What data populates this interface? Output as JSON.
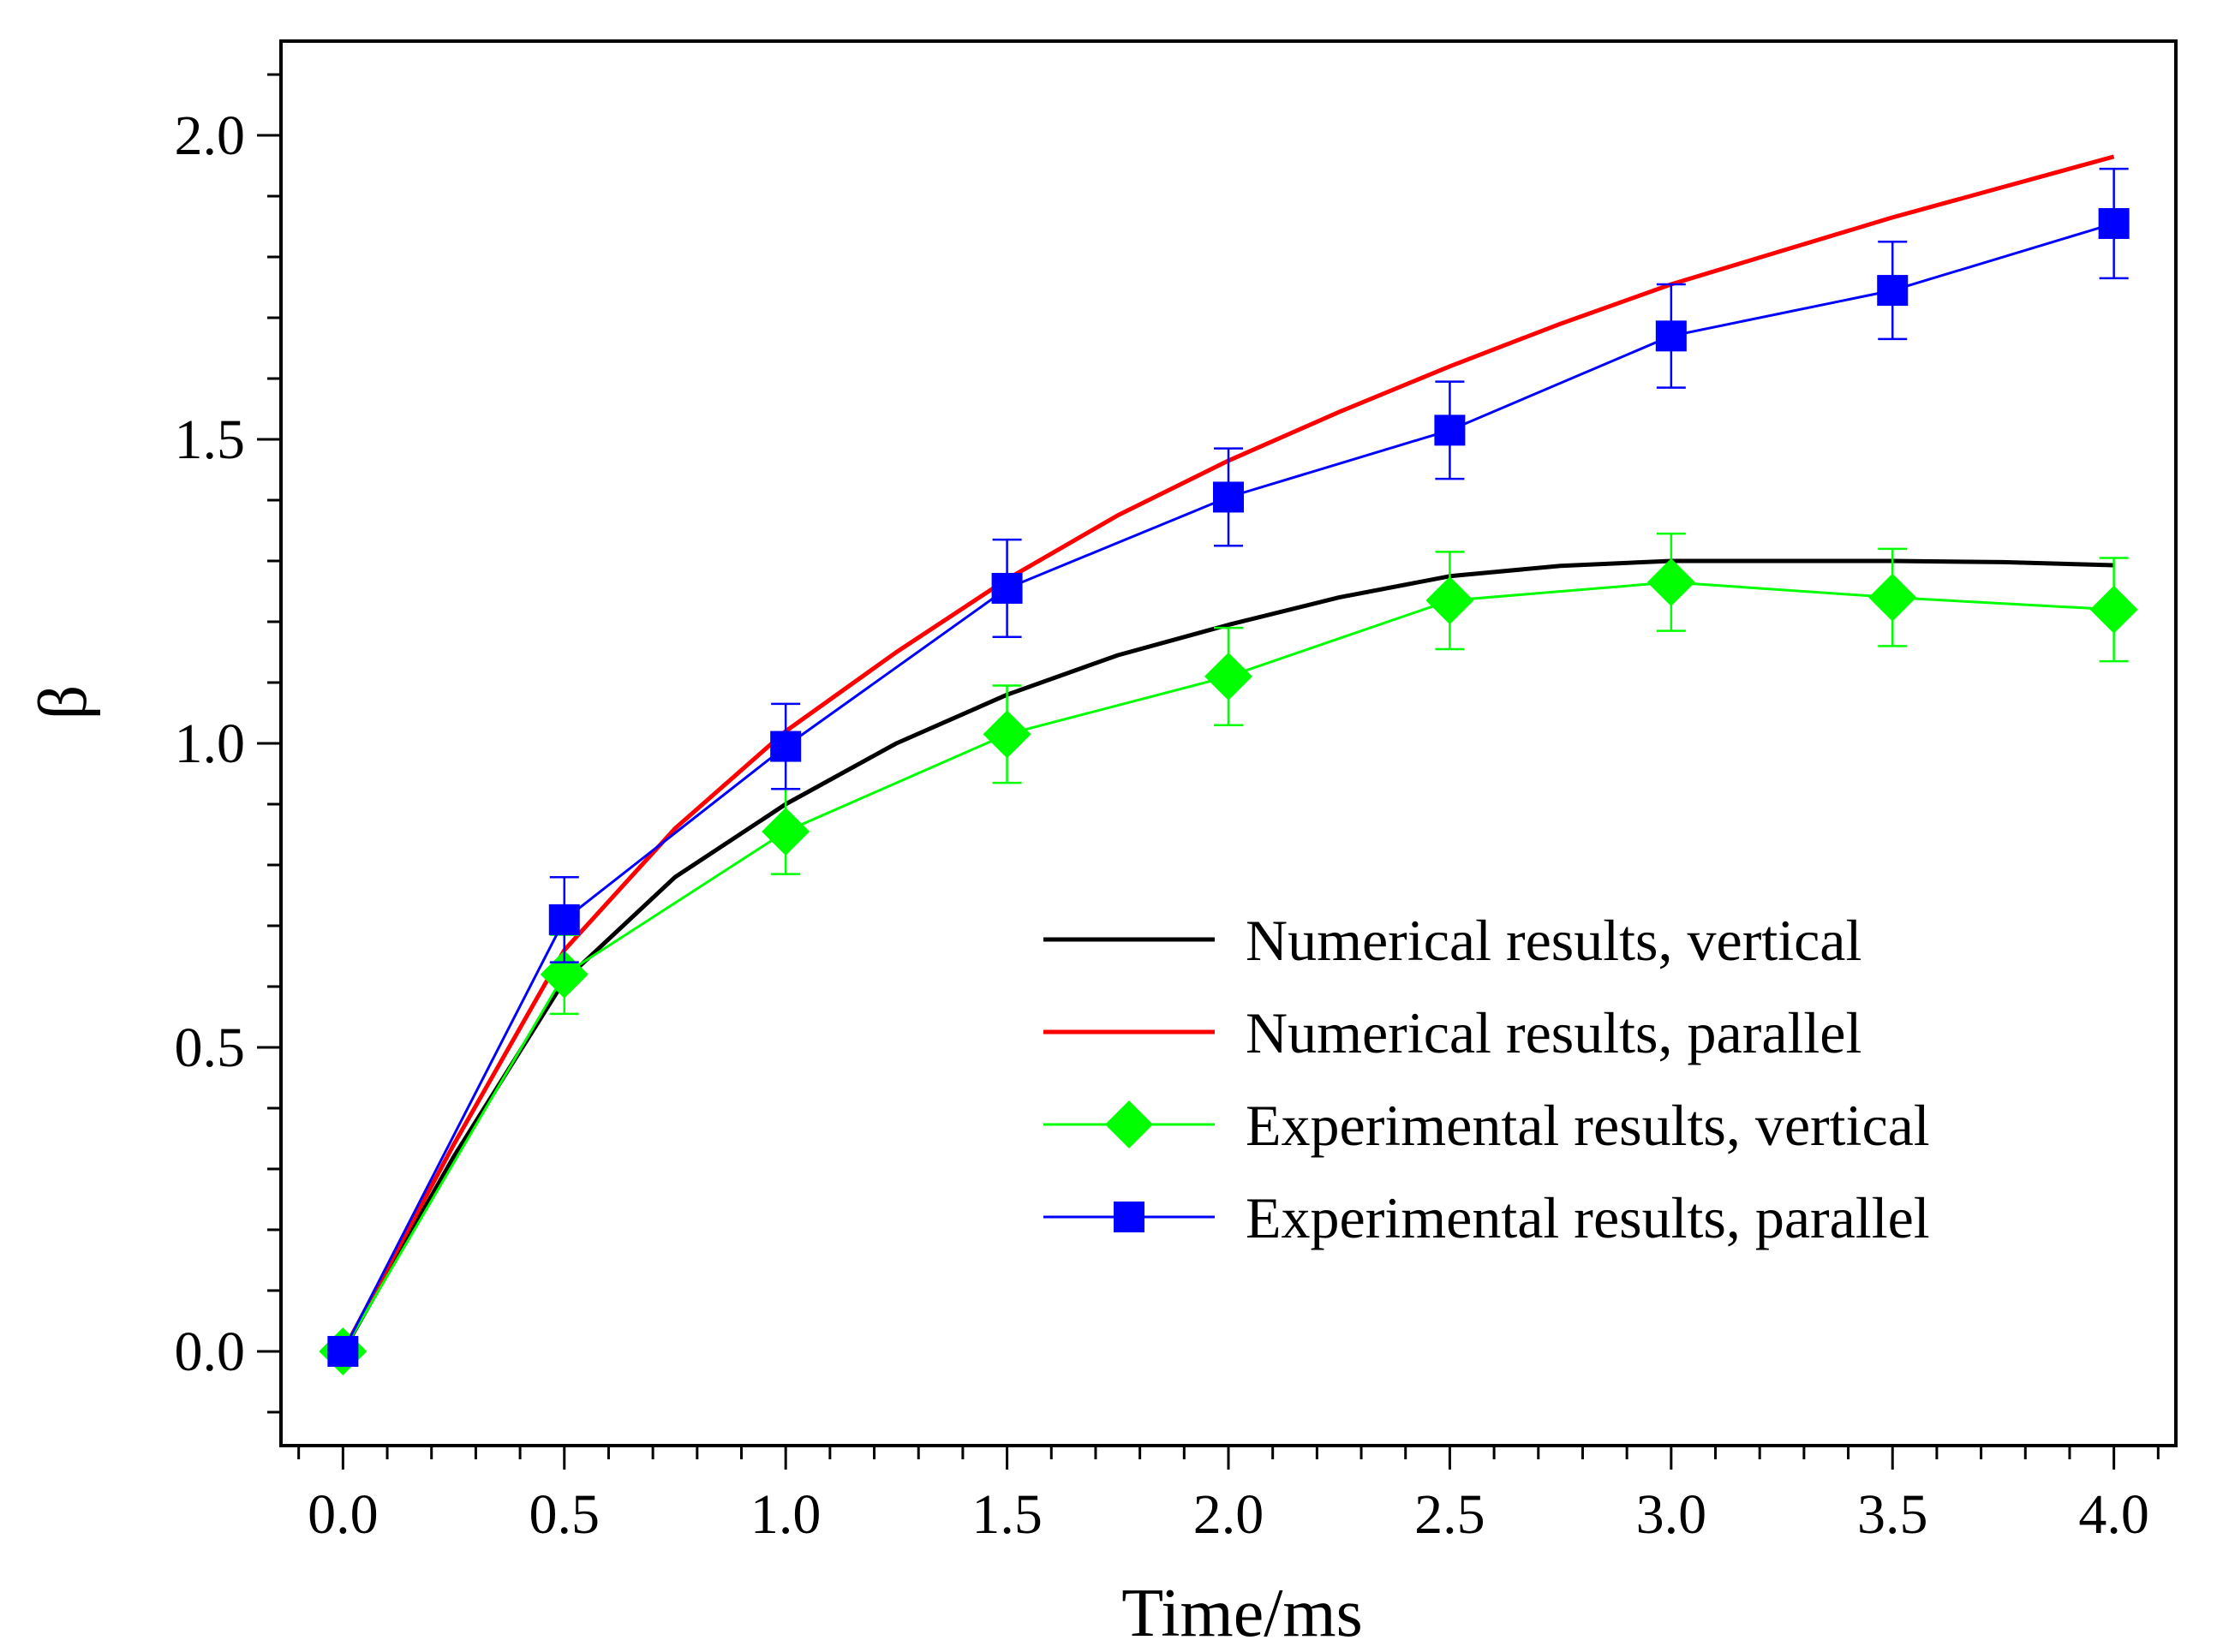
{
  "chart_data": {
    "type": "line",
    "title": "",
    "xlabel": "Time/ms",
    "ylabel": "β",
    "xlim": [
      -0.14,
      4.14
    ],
    "ylim": [
      -0.155,
      2.155
    ],
    "x_ticks": [
      0.0,
      0.5,
      1.0,
      1.5,
      2.0,
      2.5,
      3.0,
      3.5,
      4.0
    ],
    "x_tick_labels": [
      "0.0",
      "0.5",
      "1.0",
      "1.5",
      "2.0",
      "2.5",
      "3.0",
      "3.5",
      "4.0"
    ],
    "x_minor_step": 0.1,
    "y_ticks": [
      0.0,
      0.5,
      1.0,
      1.5,
      2.0
    ],
    "y_tick_labels": [
      "0.0",
      "0.5",
      "1.0",
      "1.5",
      "2.0"
    ],
    "y_minor_step": 0.1,
    "grid": false,
    "legend_position": "lower-right",
    "series": [
      {
        "name": "Numerical results, vertical",
        "color": "#000000",
        "marker": "none",
        "x": [
          0.0,
          0.25,
          0.5,
          0.75,
          1.0,
          1.25,
          1.5,
          1.75,
          2.0,
          2.25,
          2.5,
          2.75,
          3.0,
          3.25,
          3.5,
          3.75,
          4.0
        ],
        "values": [
          0.0,
          0.32,
          0.61,
          0.78,
          0.9,
          1.0,
          1.08,
          1.145,
          1.195,
          1.24,
          1.275,
          1.292,
          1.3,
          1.3,
          1.3,
          1.298,
          1.293
        ]
      },
      {
        "name": "Numerical results, parallel",
        "color": "#ff0000",
        "marker": "none",
        "x": [
          0.0,
          0.25,
          0.5,
          0.75,
          1.0,
          1.25,
          1.5,
          1.75,
          2.0,
          2.25,
          2.5,
          2.75,
          3.0,
          3.25,
          3.5,
          3.75,
          4.0
        ],
        "values": [
          0.0,
          0.34,
          0.66,
          0.86,
          1.02,
          1.15,
          1.27,
          1.375,
          1.465,
          1.545,
          1.62,
          1.69,
          1.755,
          1.81,
          1.865,
          1.915,
          1.965
        ]
      },
      {
        "name": "Experimental results, vertical",
        "color": "#00ff00",
        "marker": "diamond",
        "x": [
          0.0,
          0.5,
          1.0,
          1.5,
          2.0,
          2.5,
          3.0,
          3.5,
          4.0
        ],
        "values": [
          0.0,
          0.62,
          0.855,
          1.015,
          1.11,
          1.235,
          1.265,
          1.24,
          1.22
        ],
        "errors": [
          0.0,
          0.065,
          0.07,
          0.08,
          0.08,
          0.08,
          0.08,
          0.08,
          0.085
        ]
      },
      {
        "name": "Experimental results, parallel",
        "color": "#0000ff",
        "marker": "square",
        "x": [
          0.0,
          0.5,
          1.0,
          1.5,
          2.0,
          2.5,
          3.0,
          3.5,
          4.0
        ],
        "values": [
          0.0,
          0.71,
          0.995,
          1.255,
          1.405,
          1.515,
          1.67,
          1.745,
          1.855
        ],
        "errors": [
          0.0,
          0.07,
          0.07,
          0.08,
          0.08,
          0.08,
          0.085,
          0.08,
          0.09
        ]
      }
    ]
  }
}
